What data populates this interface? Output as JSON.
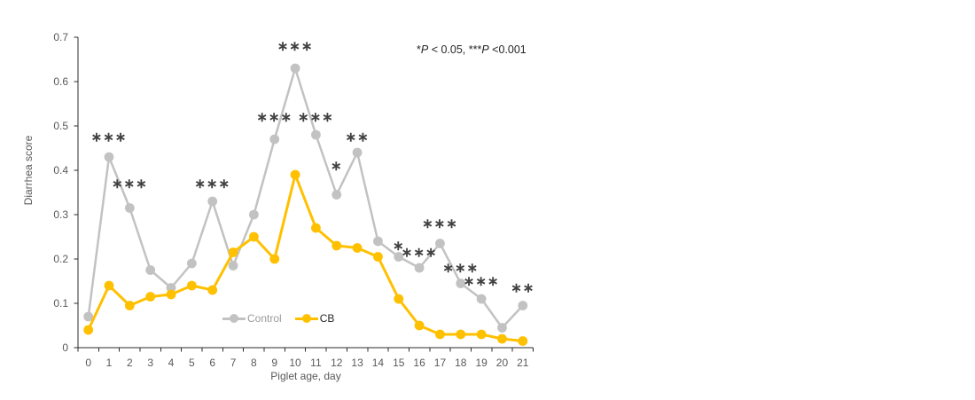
{
  "colors": {
    "background": "#ffffff",
    "axis_line": "#2b2b2b",
    "tick_label": "#595959",
    "axis_title": "#595959",
    "significance_marker": "#404040",
    "annotation_text": "#262626",
    "control_series": "#c2c2c2",
    "cb_series": "#ffc000",
    "control_legend_text": "#9b9b9b",
    "cb_legend_text": "#262626"
  },
  "annotation": {
    "text": "*P < 0.05, ***P <0.001",
    "segments": [
      {
        "text": "*",
        "italic": false
      },
      {
        "text": "P",
        "italic": true
      },
      {
        "text": " < 0.05, ",
        "italic": false
      },
      {
        "text": "***",
        "italic": false
      },
      {
        "text": "P",
        "italic": true
      },
      {
        "text": " <0.001",
        "italic": false
      }
    ]
  },
  "legend": {
    "items": [
      {
        "label": "Control",
        "color": "#c2c2c2",
        "text_color": "#9b9b9b"
      },
      {
        "label": "CB",
        "color": "#ffc000",
        "text_color": "#262626"
      }
    ]
  },
  "chart_data": {
    "type": "line",
    "title": "",
    "xlabel": "Piglet age, day",
    "ylabel": "Diarrhea score",
    "x": [
      0,
      1,
      2,
      3,
      4,
      5,
      6,
      7,
      8,
      9,
      10,
      11,
      12,
      13,
      14,
      15,
      16,
      17,
      18,
      19,
      20,
      21
    ],
    "x_tick_labels": [
      "0",
      "1",
      "2",
      "3",
      "4",
      "5",
      "6",
      "7",
      "8",
      "9",
      "10",
      "11",
      "12",
      "13",
      "14",
      "15",
      "16",
      "17",
      "18",
      "19",
      "20",
      "21"
    ],
    "y_tick_labels": [
      "0",
      "0.1",
      "0.2",
      "0.3",
      "0.4",
      "0.5",
      "0.6",
      "0.7"
    ],
    "ylim": [
      0,
      0.7
    ],
    "ytick_step": 0.1,
    "grid": false,
    "legend_position": "inside-bottom-center",
    "series": [
      {
        "name": "Control",
        "color": "#c2c2c2",
        "values": [
          0.07,
          0.43,
          0.315,
          0.175,
          0.135,
          0.19,
          0.33,
          0.185,
          0.3,
          0.47,
          0.63,
          0.48,
          0.345,
          0.44,
          0.24,
          0.205,
          0.18,
          0.235,
          0.145,
          0.11,
          0.045,
          0.095
        ]
      },
      {
        "name": "CB",
        "color": "#ffc000",
        "values": [
          0.04,
          0.14,
          0.095,
          0.115,
          0.12,
          0.14,
          0.13,
          0.215,
          0.25,
          0.2,
          0.39,
          0.27,
          0.23,
          0.225,
          0.205,
          0.11,
          0.05,
          0.03,
          0.03,
          0.03,
          0.02,
          0.015
        ]
      }
    ],
    "significance_markers": [
      {
        "day": 1,
        "symbol": "***",
        "label_y": 0.475
      },
      {
        "day": 2,
        "symbol": "***",
        "label_y": 0.37
      },
      {
        "day": 6,
        "symbol": "***",
        "label_y": 0.37
      },
      {
        "day": 9,
        "symbol": "***",
        "label_y": 0.52
      },
      {
        "day": 10,
        "symbol": "***",
        "label_y": 0.68
      },
      {
        "day": 11,
        "symbol": "***",
        "label_y": 0.52
      },
      {
        "day": 12,
        "symbol": "*",
        "label_y": 0.41
      },
      {
        "day": 13,
        "symbol": "**",
        "label_y": 0.475
      },
      {
        "day": 15,
        "symbol": "*",
        "label_y": 0.23
      },
      {
        "day": 16,
        "symbol": "***",
        "label_y": 0.215
      },
      {
        "day": 17,
        "symbol": "***",
        "label_y": 0.28
      },
      {
        "day": 18,
        "symbol": "***",
        "label_y": 0.18
      },
      {
        "day": 19,
        "symbol": "***",
        "label_y": 0.15
      },
      {
        "day": 21,
        "symbol": "**",
        "label_y": 0.135
      }
    ],
    "significance_note": "*P < 0.05, ***P <0.001"
  }
}
